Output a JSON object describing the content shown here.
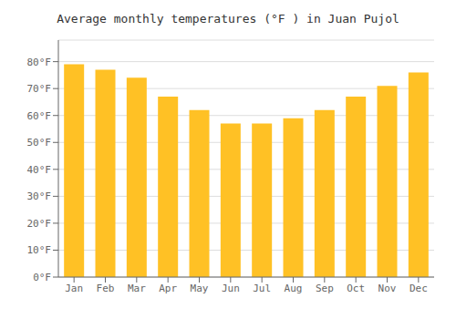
{
  "chart_data": {
    "type": "bar",
    "title": "Average monthly temperatures (°F ) in Juan Pujol",
    "categories": [
      "Jan",
      "Feb",
      "Mar",
      "Apr",
      "May",
      "Jun",
      "Jul",
      "Aug",
      "Sep",
      "Oct",
      "Nov",
      "Dec"
    ],
    "values": [
      79,
      77,
      74,
      67,
      62,
      57,
      57,
      59,
      62,
      67,
      71,
      76
    ],
    "color": "#FFC125",
    "ylim": [
      0,
      88
    ],
    "yticks": [
      {
        "value": 0,
        "label": "0°F"
      },
      {
        "value": 10,
        "label": "10°F"
      },
      {
        "value": 20,
        "label": "20°F"
      },
      {
        "value": 30,
        "label": "30°F"
      },
      {
        "value": 40,
        "label": "40°F"
      },
      {
        "value": 50,
        "label": "50°F"
      },
      {
        "value": 60,
        "label": "60°F"
      },
      {
        "value": 70,
        "label": "70°F"
      },
      {
        "value": 80,
        "label": "80°F"
      }
    ],
    "grid": true
  }
}
